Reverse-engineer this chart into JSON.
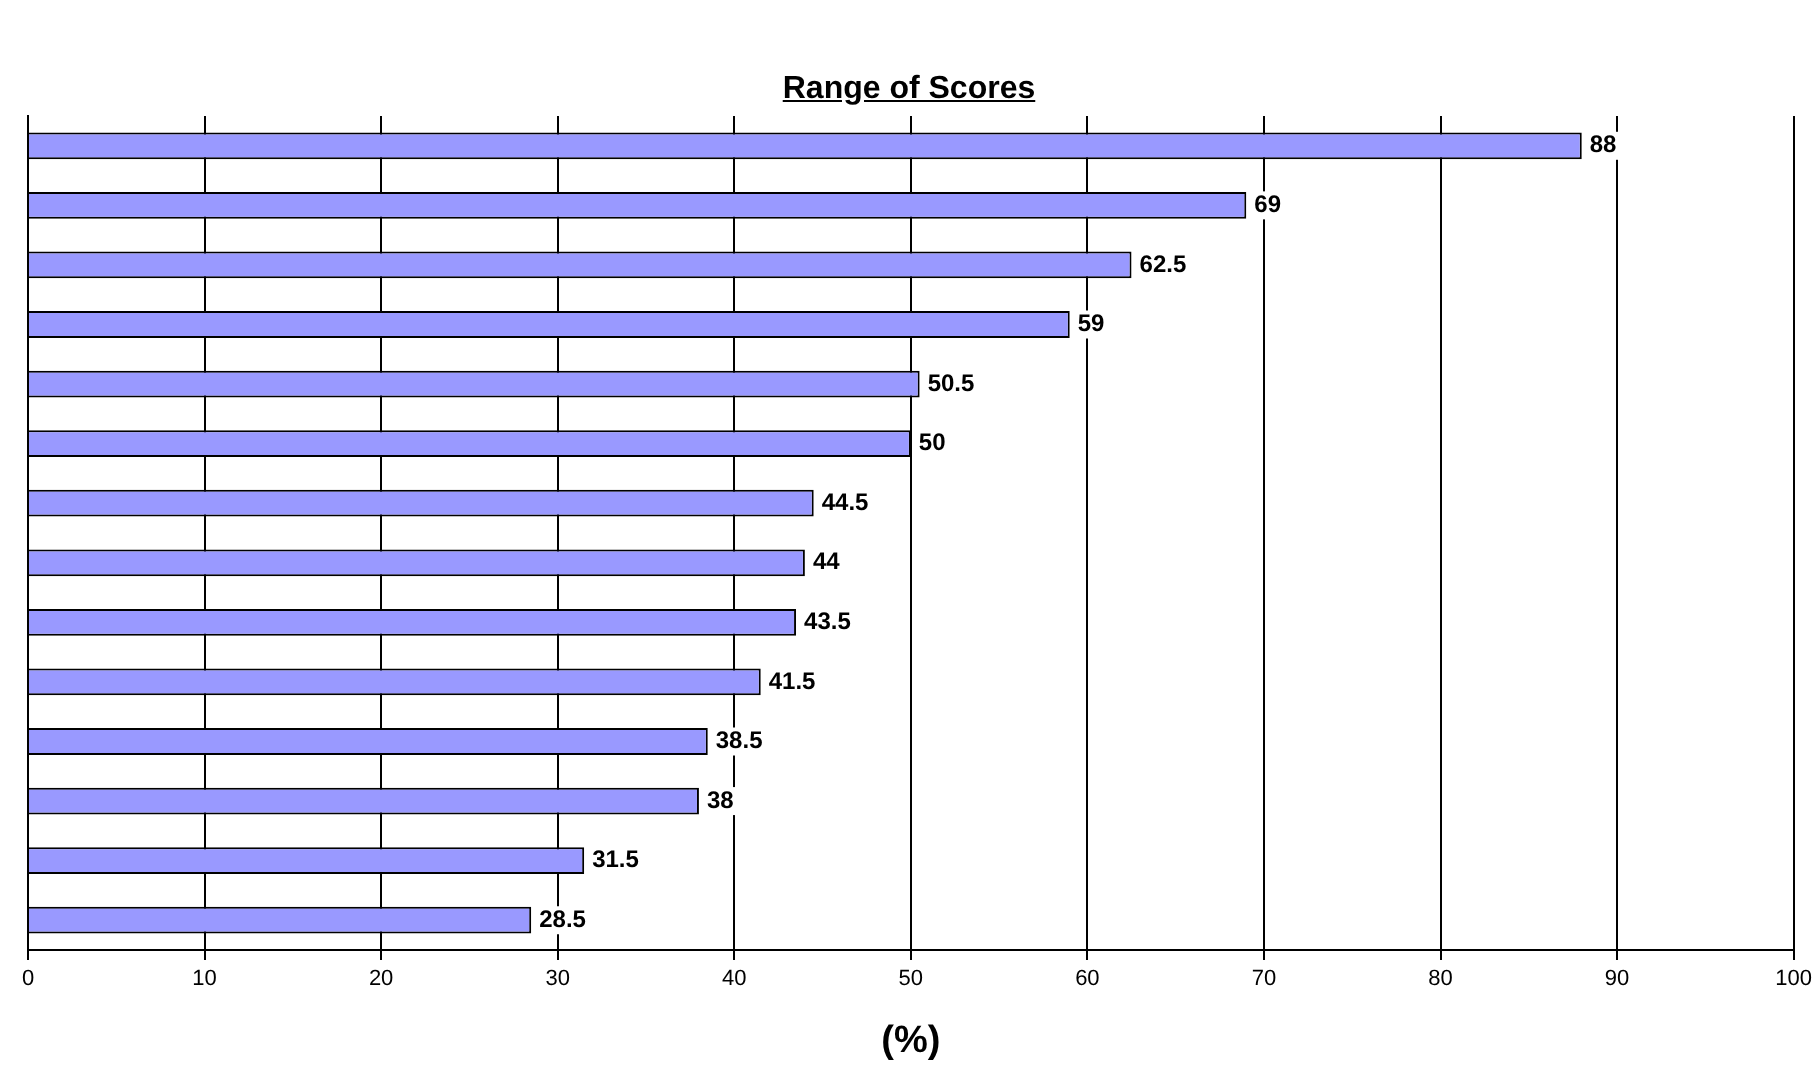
{
  "chart_data": {
    "type": "bar",
    "orientation": "horizontal",
    "title": "Range of Scores",
    "xlabel": "(%)",
    "categories": [
      null,
      null,
      null,
      null,
      null,
      null,
      null,
      null,
      null,
      null,
      null,
      null,
      null,
      null
    ],
    "values": [
      88,
      69,
      62.5,
      59,
      50.5,
      50,
      44.5,
      44,
      43.5,
      41.5,
      38.5,
      38,
      31.5,
      28.5
    ],
    "color": "#9999ff",
    "xlim": [
      0,
      100
    ],
    "xticks": [
      0,
      10,
      20,
      30,
      40,
      50,
      60,
      70,
      80,
      90,
      100
    ],
    "grid": "x",
    "data_labels": true,
    "legend": false
  }
}
